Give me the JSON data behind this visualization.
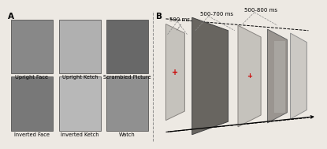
{
  "panel_a_label": "A",
  "panel_b_label": "B",
  "labels_top": [
    "Upright Face",
    "Upright Ketch",
    "Scrambled Picture"
  ],
  "labels_bottom": [
    "Inverted Face",
    "Inverted Ketch",
    "Watch"
  ],
  "time_labels": [
    "500 ms",
    "500-700 ms",
    "500-800 ms"
  ],
  "bg_color": "#ede9e3",
  "font_size_label": 4.8,
  "font_size_panel": 7.5,
  "font_size_time": 5.0,
  "img_gray": "#a0a0a0",
  "img_dark": "#606060",
  "img_light": "#d0d0d0",
  "card_gray": "#c8c5c0",
  "card_dark": "#888480",
  "divider_color": "#888888"
}
